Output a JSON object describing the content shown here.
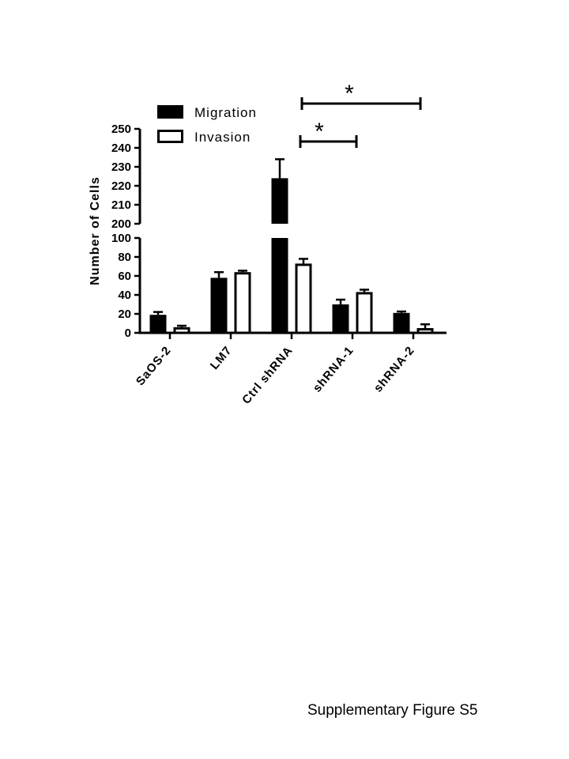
{
  "chart_data": {
    "type": "bar",
    "ylabel": "Number of Cells",
    "axis_break": {
      "lower_range": [
        0,
        100
      ],
      "upper_range": [
        200,
        250
      ]
    },
    "lower_ticks": [
      "0",
      "20",
      "40",
      "60",
      "80",
      "100"
    ],
    "upper_ticks": [
      "200",
      "210",
      "220",
      "230",
      "240",
      "250"
    ],
    "categories": [
      "SaOS-2",
      "LM7",
      "Ctrl shRNA",
      "shRNA-1",
      "shRNA-2"
    ],
    "series": [
      {
        "name": "Migration",
        "fill": "#000000",
        "values": [
          19,
          58,
          224,
          30,
          21
        ],
        "errors": [
          3,
          6,
          10,
          5,
          1.5
        ]
      },
      {
        "name": "Invasion",
        "fill": "#ffffff",
        "values": [
          6,
          64,
          73,
          43,
          5
        ],
        "errors": [
          1.5,
          1.5,
          5,
          2.5,
          4
        ]
      }
    ],
    "significance": [
      {
        "from": "Ctrl shRNA",
        "to": "shRNA-1",
        "label": "*"
      },
      {
        "from": "Ctrl shRNA",
        "to": "shRNA-2",
        "label": "*"
      }
    ],
    "legend_position": "top-left"
  },
  "caption": "Supplementary Figure S5"
}
